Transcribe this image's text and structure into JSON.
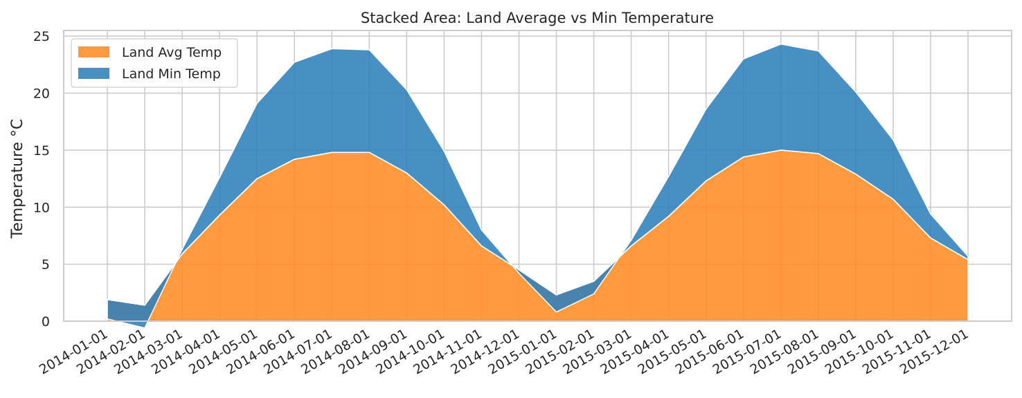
{
  "chart_data": {
    "type": "area",
    "stacked": true,
    "title": "Stacked Area: Land Average vs Min Temperature",
    "xlabel": "",
    "ylabel": "Temperature °C",
    "ylim": [
      0,
      25.5
    ],
    "yticks": [
      0,
      5,
      10,
      15,
      20,
      25
    ],
    "grid": true,
    "legend_position": "top-left",
    "categories": [
      "2014-01-01",
      "2014-02-01",
      "2014-03-01",
      "2014-04-01",
      "2014-05-01",
      "2014-06-01",
      "2014-07-01",
      "2014-08-01",
      "2014-09-01",
      "2014-10-01",
      "2014-11-01",
      "2014-12-01",
      "2015-01-01",
      "2015-02-01",
      "2015-03-01",
      "2015-04-01",
      "2015-05-01",
      "2015-06-01",
      "2015-07-01",
      "2015-08-01",
      "2015-09-01",
      "2015-10-01",
      "2015-11-01",
      "2015-12-01"
    ],
    "series": [
      {
        "name": "Land Avg Temp",
        "color": "#ff8c26",
        "values": [
          1.9,
          1.4,
          5.9,
          9.3,
          12.5,
          14.2,
          14.8,
          14.8,
          13.0,
          10.2,
          6.6,
          4.5,
          2.3,
          3.5,
          6.6,
          9.2,
          12.3,
          14.4,
          15.0,
          14.7,
          12.9,
          10.7,
          7.3,
          5.4
        ]
      },
      {
        "name": "Land Min Temp",
        "color": "#2f7fbc",
        "values": [
          -1.7,
          -2.0,
          0.4,
          3.3,
          6.6,
          8.5,
          9.1,
          9.0,
          7.3,
          4.7,
          1.4,
          -0.3,
          -1.5,
          -1.1,
          0.5,
          3.5,
          6.3,
          8.6,
          9.3,
          9.0,
          7.2,
          5.2,
          2.1,
          0.3
        ]
      }
    ]
  }
}
